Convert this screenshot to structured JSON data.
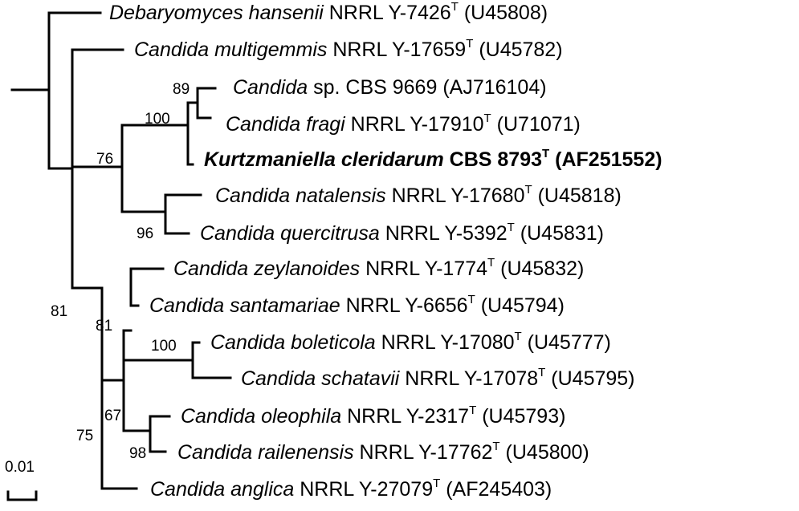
{
  "taxa": [
    {
      "genus": "Debaryomyces hansenii",
      "strain": "NRRL Y-7426",
      "type_mark": "T",
      "accession": "(U45808)",
      "bold": false
    },
    {
      "genus": "Candida multigemmis",
      "strain": "NRRL Y-17659",
      "type_mark": "T",
      "accession": "(U45782)",
      "bold": false
    },
    {
      "genus": "Candida",
      "strain": "sp. CBS 9669",
      "type_mark": "",
      "accession": "(AJ716104)",
      "bold": false
    },
    {
      "genus": "Candida fragi",
      "strain": "NRRL Y-17910",
      "type_mark": "T",
      "accession": "(U71071)",
      "bold": false
    },
    {
      "genus": "Kurtzmaniella  cleridarum",
      "strain": "CBS 8793",
      "type_mark": "T",
      "accession": "(AF251552)",
      "bold": true
    },
    {
      "genus": "Candida natalensis",
      "strain": "NRRL Y-17680",
      "type_mark": "T",
      "accession": "(U45818)",
      "bold": false
    },
    {
      "genus": "Candida quercitrusa",
      "strain": "NRRL Y-5392",
      "type_mark": "T",
      "accession": "(U45831)",
      "bold": false
    },
    {
      "genus": "Candida zeylanoides",
      "strain": "NRRL Y-1774",
      "type_mark": "T",
      "accession": "(U45832)",
      "bold": false
    },
    {
      "genus": "Candida santamariae",
      "strain": "NRRL Y-6656",
      "type_mark": "T",
      "accession": "(U45794)",
      "bold": false
    },
    {
      "genus": "Candida boleticola",
      "strain": "NRRL Y-17080",
      "type_mark": "T",
      "accession": "(U45777)",
      "bold": false
    },
    {
      "genus": "Candida schatavii",
      "strain": "NRRL Y-17078",
      "type_mark": "T",
      "accession": "(U45795)",
      "bold": false
    },
    {
      "genus": "Candida oleophila",
      "strain": "NRRL Y-2317",
      "type_mark": "T",
      "accession": "(U45793)",
      "bold": false
    },
    {
      "genus": "Candida railenensis",
      "strain": "NRRL Y-17762",
      "type_mark": "T",
      "accession": "(U45800)",
      "bold": false
    },
    {
      "genus": "Candida anglica",
      "strain": "NRRL Y-27079",
      "type_mark": "T",
      "accession": "(AF245403)",
      "bold": false
    }
  ],
  "bootstrap": [
    "89",
    "100",
    "76",
    "96",
    "81",
    "81",
    "100",
    "67",
    "98",
    "75"
  ],
  "scale_bar": {
    "label": "0.01"
  },
  "colors": {
    "line": "#000000",
    "text": "#000000",
    "background": "#ffffff"
  }
}
